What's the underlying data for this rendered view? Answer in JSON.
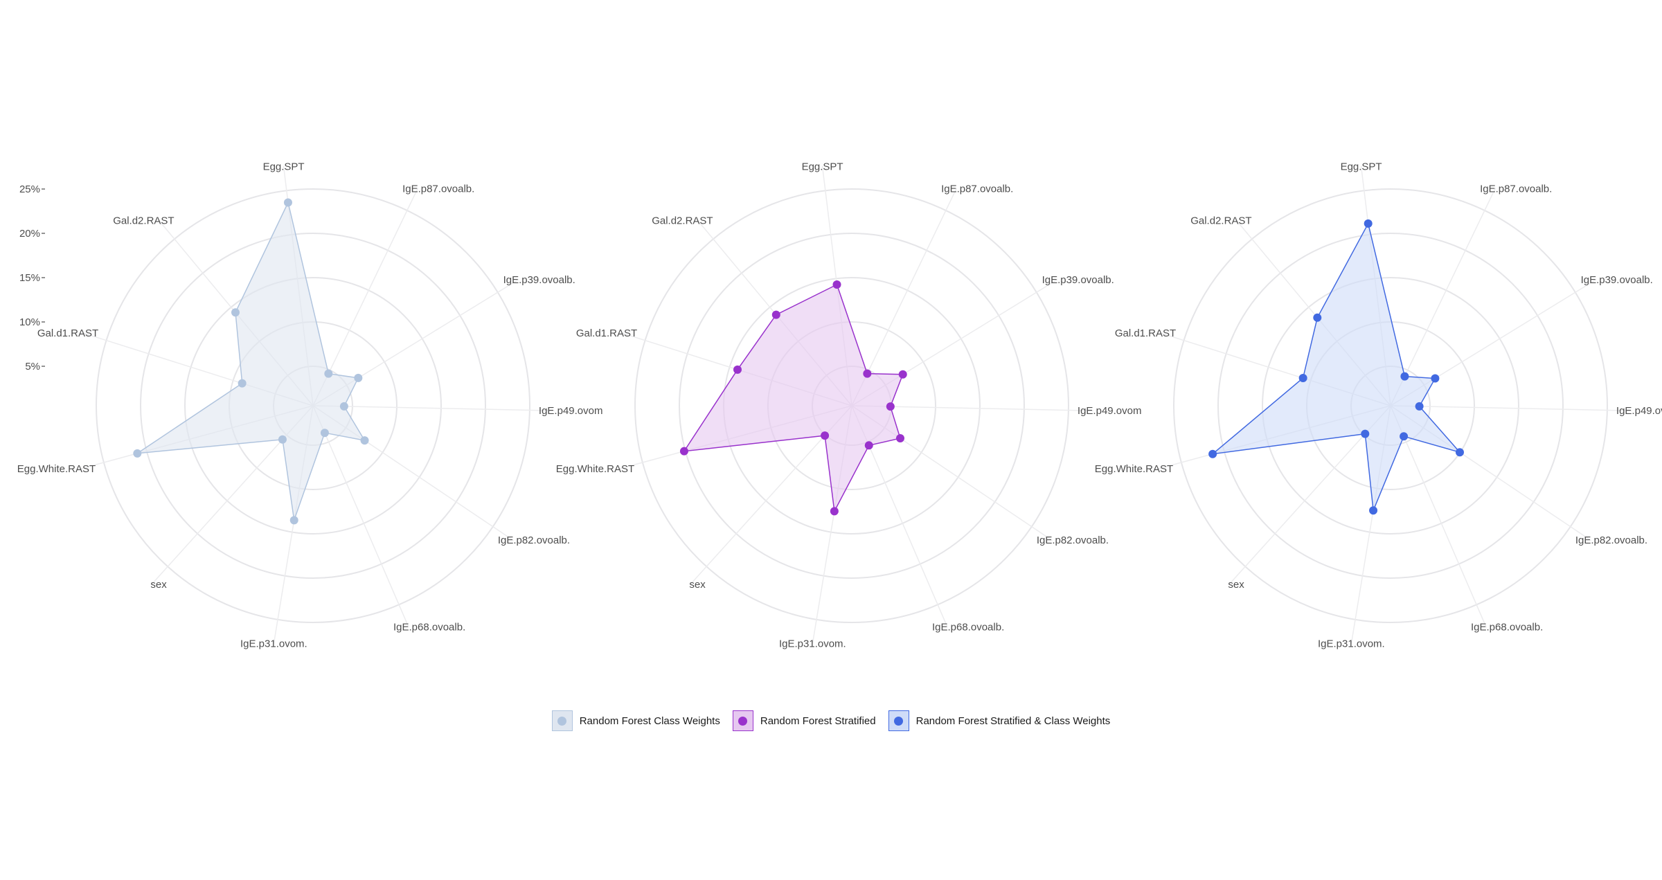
{
  "chart_data": {
    "type": "radar",
    "axes": [
      "Egg.SPT",
      "IgE.p87.ovoalb.",
      "IgE.p39.ovoalb.",
      "IgE.p49.ovom",
      "IgE.p82.ovoalb.",
      "IgE.p68.ovoalb.",
      "IgE.p31.ovom.",
      "sex",
      "Egg.White.RAST",
      "Gal.d1.RAST",
      "Gal.d2.RAST"
    ],
    "tick_labels": [
      "5%",
      "10%",
      "15%",
      "20%",
      "25%"
    ],
    "ticks": [
      5,
      10,
      15,
      20,
      25
    ],
    "rmax": 28,
    "grid": true,
    "legend_position": "bottom",
    "series": [
      {
        "name": "Random Forest Class Weights",
        "color": "#b0c4de",
        "fill": "#dfe6f0",
        "values": [
          23.5,
          1.2,
          3.5,
          0.6,
          4.7,
          0.4,
          11.8,
          2.5,
          20.5,
          6.3,
          12.5
        ]
      },
      {
        "name": "Random Forest Stratified",
        "color": "#9932cc",
        "fill": "#e6c8f0",
        "values": [
          12.6,
          1.2,
          4.4,
          1.6,
          4.2,
          2.2,
          10.6,
          1.8,
          19.4,
          12.3,
          12.1
        ]
      },
      {
        "name": "Random Forest Stratified & Class Weights",
        "color": "#4169e1",
        "fill": "#cfdcf8",
        "values": [
          20.7,
          0.8,
          3.4,
          0.3,
          7.5,
          0.9,
          10.5,
          1.5,
          20.8,
          8.6,
          11.6
        ]
      }
    ]
  }
}
